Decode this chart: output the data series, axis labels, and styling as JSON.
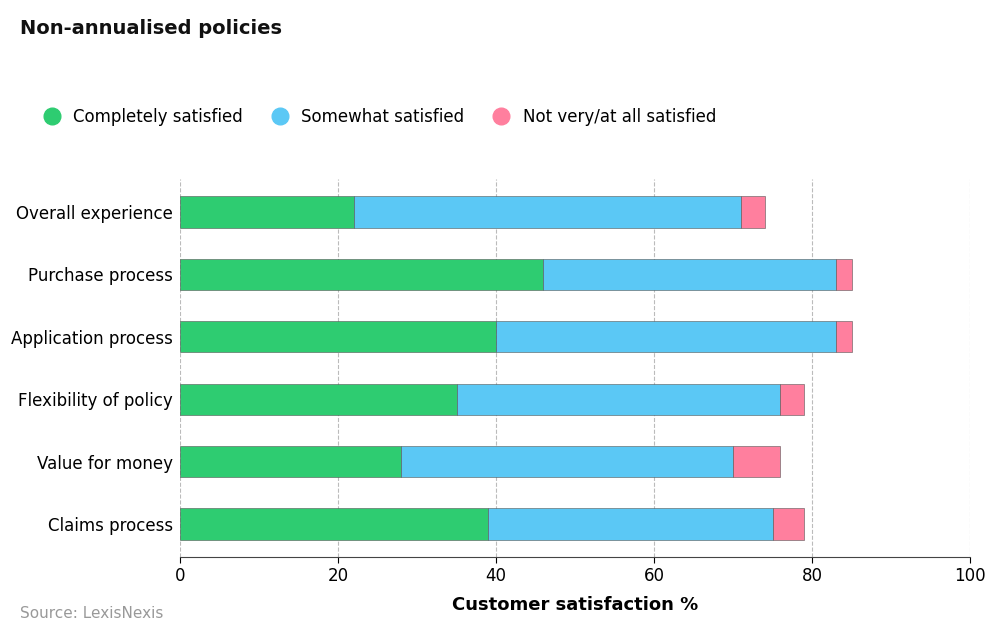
{
  "title": "Non-annualised policies",
  "xlabel": "Customer satisfaction %",
  "source": "Source: LexisNexis",
  "categories": [
    "Overall experience",
    "Purchase process",
    "Application process",
    "Flexibility of policy",
    "Value for money",
    "Claims process"
  ],
  "completely_satisfied": [
    22,
    46,
    40,
    35,
    28,
    39
  ],
  "somewhat_satisfied": [
    49,
    37,
    43,
    41,
    42,
    36
  ],
  "not_very_satisfied": [
    3,
    2,
    2,
    3,
    6,
    4
  ],
  "color_green": "#2ECC71",
  "color_blue": "#5BC8F5",
  "color_pink": "#FF7F9E",
  "bar_height": 0.5,
  "xlim": [
    0,
    100
  ],
  "xticks": [
    0,
    20,
    40,
    60,
    80,
    100
  ],
  "legend_labels": [
    "Completely satisfied",
    "Somewhat satisfied",
    "Not very/at all satisfied"
  ],
  "title_fontsize": 14,
  "axis_label_fontsize": 13,
  "tick_fontsize": 12,
  "legend_fontsize": 12,
  "source_fontsize": 11,
  "background_color": "#FFFFFF"
}
